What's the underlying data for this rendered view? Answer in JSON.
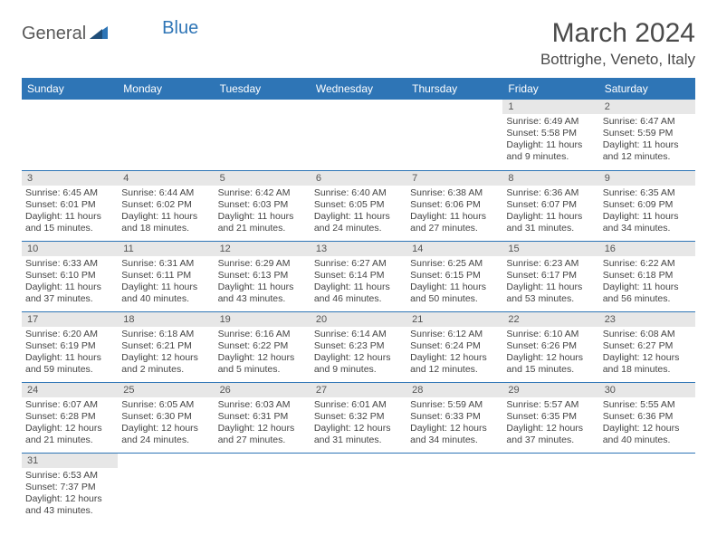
{
  "brand": {
    "text1": "General",
    "text2": "Blue"
  },
  "title": "March 2024",
  "location": "Bottrighe, Veneto, Italy",
  "dayHeaders": [
    "Sunday",
    "Monday",
    "Tuesday",
    "Wednesday",
    "Thursday",
    "Friday",
    "Saturday"
  ],
  "colors": {
    "headerBg": "#2e75b6",
    "headerText": "#ffffff",
    "dayNumBg": "#e7e7e7",
    "border": "#2e75b6",
    "bodyText": "#444444"
  },
  "weeks": [
    [
      null,
      null,
      null,
      null,
      null,
      {
        "n": "1",
        "sr": "Sunrise: 6:49 AM",
        "ss": "Sunset: 5:58 PM",
        "dl": "Daylight: 11 hours and 9 minutes."
      },
      {
        "n": "2",
        "sr": "Sunrise: 6:47 AM",
        "ss": "Sunset: 5:59 PM",
        "dl": "Daylight: 11 hours and 12 minutes."
      }
    ],
    [
      {
        "n": "3",
        "sr": "Sunrise: 6:45 AM",
        "ss": "Sunset: 6:01 PM",
        "dl": "Daylight: 11 hours and 15 minutes."
      },
      {
        "n": "4",
        "sr": "Sunrise: 6:44 AM",
        "ss": "Sunset: 6:02 PM",
        "dl": "Daylight: 11 hours and 18 minutes."
      },
      {
        "n": "5",
        "sr": "Sunrise: 6:42 AM",
        "ss": "Sunset: 6:03 PM",
        "dl": "Daylight: 11 hours and 21 minutes."
      },
      {
        "n": "6",
        "sr": "Sunrise: 6:40 AM",
        "ss": "Sunset: 6:05 PM",
        "dl": "Daylight: 11 hours and 24 minutes."
      },
      {
        "n": "7",
        "sr": "Sunrise: 6:38 AM",
        "ss": "Sunset: 6:06 PM",
        "dl": "Daylight: 11 hours and 27 minutes."
      },
      {
        "n": "8",
        "sr": "Sunrise: 6:36 AM",
        "ss": "Sunset: 6:07 PM",
        "dl": "Daylight: 11 hours and 31 minutes."
      },
      {
        "n": "9",
        "sr": "Sunrise: 6:35 AM",
        "ss": "Sunset: 6:09 PM",
        "dl": "Daylight: 11 hours and 34 minutes."
      }
    ],
    [
      {
        "n": "10",
        "sr": "Sunrise: 6:33 AM",
        "ss": "Sunset: 6:10 PM",
        "dl": "Daylight: 11 hours and 37 minutes."
      },
      {
        "n": "11",
        "sr": "Sunrise: 6:31 AM",
        "ss": "Sunset: 6:11 PM",
        "dl": "Daylight: 11 hours and 40 minutes."
      },
      {
        "n": "12",
        "sr": "Sunrise: 6:29 AM",
        "ss": "Sunset: 6:13 PM",
        "dl": "Daylight: 11 hours and 43 minutes."
      },
      {
        "n": "13",
        "sr": "Sunrise: 6:27 AM",
        "ss": "Sunset: 6:14 PM",
        "dl": "Daylight: 11 hours and 46 minutes."
      },
      {
        "n": "14",
        "sr": "Sunrise: 6:25 AM",
        "ss": "Sunset: 6:15 PM",
        "dl": "Daylight: 11 hours and 50 minutes."
      },
      {
        "n": "15",
        "sr": "Sunrise: 6:23 AM",
        "ss": "Sunset: 6:17 PM",
        "dl": "Daylight: 11 hours and 53 minutes."
      },
      {
        "n": "16",
        "sr": "Sunrise: 6:22 AM",
        "ss": "Sunset: 6:18 PM",
        "dl": "Daylight: 11 hours and 56 minutes."
      }
    ],
    [
      {
        "n": "17",
        "sr": "Sunrise: 6:20 AM",
        "ss": "Sunset: 6:19 PM",
        "dl": "Daylight: 11 hours and 59 minutes."
      },
      {
        "n": "18",
        "sr": "Sunrise: 6:18 AM",
        "ss": "Sunset: 6:21 PM",
        "dl": "Daylight: 12 hours and 2 minutes."
      },
      {
        "n": "19",
        "sr": "Sunrise: 6:16 AM",
        "ss": "Sunset: 6:22 PM",
        "dl": "Daylight: 12 hours and 5 minutes."
      },
      {
        "n": "20",
        "sr": "Sunrise: 6:14 AM",
        "ss": "Sunset: 6:23 PM",
        "dl": "Daylight: 12 hours and 9 minutes."
      },
      {
        "n": "21",
        "sr": "Sunrise: 6:12 AM",
        "ss": "Sunset: 6:24 PM",
        "dl": "Daylight: 12 hours and 12 minutes."
      },
      {
        "n": "22",
        "sr": "Sunrise: 6:10 AM",
        "ss": "Sunset: 6:26 PM",
        "dl": "Daylight: 12 hours and 15 minutes."
      },
      {
        "n": "23",
        "sr": "Sunrise: 6:08 AM",
        "ss": "Sunset: 6:27 PM",
        "dl": "Daylight: 12 hours and 18 minutes."
      }
    ],
    [
      {
        "n": "24",
        "sr": "Sunrise: 6:07 AM",
        "ss": "Sunset: 6:28 PM",
        "dl": "Daylight: 12 hours and 21 minutes."
      },
      {
        "n": "25",
        "sr": "Sunrise: 6:05 AM",
        "ss": "Sunset: 6:30 PM",
        "dl": "Daylight: 12 hours and 24 minutes."
      },
      {
        "n": "26",
        "sr": "Sunrise: 6:03 AM",
        "ss": "Sunset: 6:31 PM",
        "dl": "Daylight: 12 hours and 27 minutes."
      },
      {
        "n": "27",
        "sr": "Sunrise: 6:01 AM",
        "ss": "Sunset: 6:32 PM",
        "dl": "Daylight: 12 hours and 31 minutes."
      },
      {
        "n": "28",
        "sr": "Sunrise: 5:59 AM",
        "ss": "Sunset: 6:33 PM",
        "dl": "Daylight: 12 hours and 34 minutes."
      },
      {
        "n": "29",
        "sr": "Sunrise: 5:57 AM",
        "ss": "Sunset: 6:35 PM",
        "dl": "Daylight: 12 hours and 37 minutes."
      },
      {
        "n": "30",
        "sr": "Sunrise: 5:55 AM",
        "ss": "Sunset: 6:36 PM",
        "dl": "Daylight: 12 hours and 40 minutes."
      }
    ],
    [
      {
        "n": "31",
        "sr": "Sunrise: 6:53 AM",
        "ss": "Sunset: 7:37 PM",
        "dl": "Daylight: 12 hours and 43 minutes."
      },
      null,
      null,
      null,
      null,
      null,
      null
    ]
  ]
}
